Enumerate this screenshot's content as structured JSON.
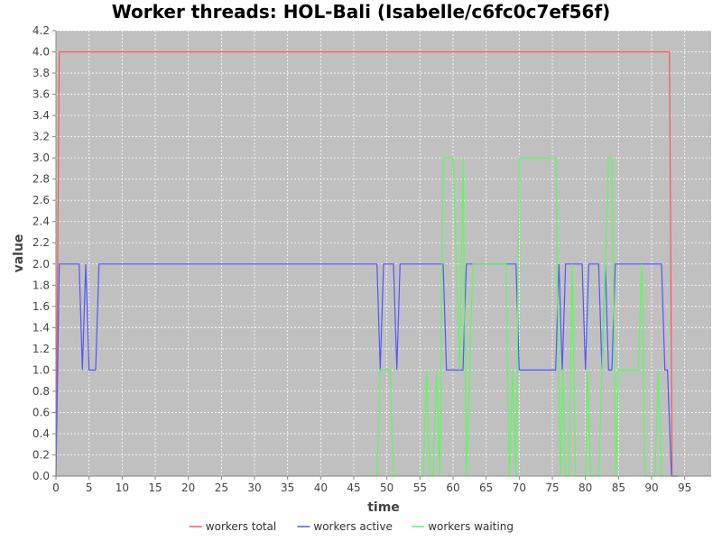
{
  "chart_data": {
    "type": "line",
    "title": "Worker threads: HOL-Bali (Isabelle/c6fc0c7ef56f)",
    "xlabel": "time",
    "ylabel": "value",
    "xlim": [
      0,
      99
    ],
    "ylim": [
      0,
      4.2
    ],
    "xticks": [
      "0",
      "5",
      "10",
      "15",
      "20",
      "25",
      "30",
      "35",
      "40",
      "45",
      "50",
      "55",
      "60",
      "65",
      "70",
      "75",
      "80",
      "85",
      "90",
      "95"
    ],
    "yticks": [
      "0.0",
      "0.2",
      "0.4",
      "0.6",
      "0.8",
      "1.0",
      "1.2",
      "1.4",
      "1.6",
      "1.8",
      "2.0",
      "2.2",
      "2.4",
      "2.6",
      "2.8",
      "3.0",
      "3.2",
      "3.4",
      "3.6",
      "3.8",
      "4.0",
      "4.2"
    ],
    "grid": true,
    "legend_position": "bottom",
    "background": "#c0c0c0",
    "series": [
      {
        "name": "workers total",
        "color": "#ff5555",
        "points": [
          [
            0,
            0
          ],
          [
            0.5,
            4
          ],
          [
            92.7,
            4
          ],
          [
            93.1,
            0
          ],
          [
            94,
            0
          ]
        ]
      },
      {
        "name": "workers active",
        "color": "#5555ff",
        "points": [
          [
            0,
            0
          ],
          [
            0.5,
            2
          ],
          [
            3.5,
            2
          ],
          [
            4,
            1
          ],
          [
            4.5,
            2
          ],
          [
            5,
            1
          ],
          [
            6,
            1
          ],
          [
            6.5,
            2
          ],
          [
            48.5,
            2
          ],
          [
            49,
            1
          ],
          [
            49.5,
            2
          ],
          [
            51,
            2
          ],
          [
            51.5,
            1
          ],
          [
            52,
            2
          ],
          [
            58.5,
            2
          ],
          [
            59,
            1
          ],
          [
            61.5,
            1
          ],
          [
            62,
            2
          ],
          [
            69.5,
            2
          ],
          [
            70,
            1
          ],
          [
            75.5,
            1
          ],
          [
            76,
            2
          ],
          [
            76.5,
            1
          ],
          [
            77,
            2
          ],
          [
            79.5,
            2
          ],
          [
            80,
            1
          ],
          [
            80.5,
            2
          ],
          [
            82,
            2
          ],
          [
            82.5,
            1
          ],
          [
            83,
            2
          ],
          [
            83.5,
            1
          ],
          [
            84,
            1
          ],
          [
            84.5,
            2
          ],
          [
            91.5,
            2
          ],
          [
            92,
            1
          ],
          [
            92.4,
            1
          ],
          [
            93,
            0
          ],
          [
            94,
            0
          ]
        ]
      },
      {
        "name": "workers waiting",
        "color": "#55ff55",
        "points": [
          [
            0,
            0
          ],
          [
            48.5,
            0
          ],
          [
            49,
            1
          ],
          [
            50.5,
            1
          ],
          [
            51,
            0
          ],
          [
            52,
            0
          ],
          [
            55.5,
            0
          ],
          [
            56,
            1
          ],
          [
            56.5,
            0
          ],
          [
            57,
            0
          ],
          [
            57.5,
            1
          ],
          [
            58,
            0
          ],
          [
            58.5,
            3
          ],
          [
            60,
            3
          ],
          [
            61,
            1
          ],
          [
            61.5,
            3
          ],
          [
            62,
            0
          ],
          [
            62.5,
            1
          ],
          [
            63,
            2
          ],
          [
            68,
            2
          ],
          [
            68.5,
            0
          ],
          [
            69,
            1
          ],
          [
            69.5,
            0
          ],
          [
            70,
            3
          ],
          [
            75.5,
            3
          ],
          [
            76.2,
            0
          ],
          [
            76.6,
            1
          ],
          [
            77,
            0
          ],
          [
            77.5,
            0
          ],
          [
            78,
            2
          ],
          [
            78.5,
            0
          ],
          [
            80,
            0
          ],
          [
            80.3,
            1
          ],
          [
            80.8,
            0
          ],
          [
            82,
            0
          ],
          [
            83,
            2
          ],
          [
            83.5,
            3
          ],
          [
            84,
            3
          ],
          [
            84.6,
            0
          ],
          [
            85,
            1
          ],
          [
            88,
            1
          ],
          [
            88.5,
            2
          ],
          [
            89,
            0
          ],
          [
            90.5,
            0
          ],
          [
            91,
            1
          ],
          [
            91.5,
            0
          ],
          [
            94,
            0
          ]
        ]
      }
    ]
  }
}
